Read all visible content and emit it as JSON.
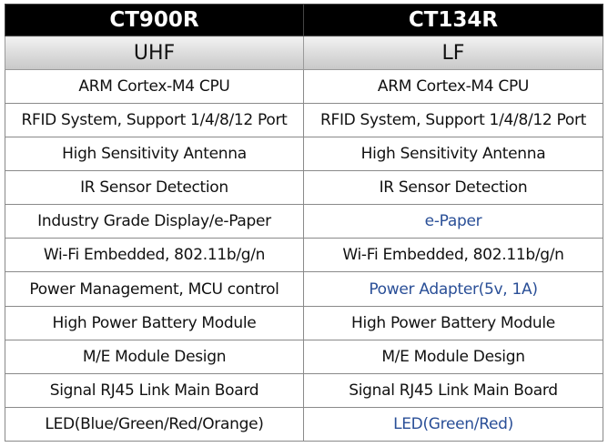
{
  "table": {
    "columns": [
      "CT900R",
      "CT134R"
    ],
    "bands": [
      "UHF",
      "LF"
    ],
    "highlight_color": "#2a4f97",
    "rows": [
      {
        "left": "ARM Cortex-M4 CPU",
        "right": "ARM Cortex-M4 CPU",
        "right_highlight": false
      },
      {
        "left": "RFID System, Support 1/4/8/12 Port",
        "right": "RFID System, Support 1/4/8/12 Port",
        "right_highlight": false
      },
      {
        "left": "High Sensitivity Antenna",
        "right": "High Sensitivity Antenna",
        "right_highlight": false
      },
      {
        "left": "IR Sensor Detection",
        "right": "IR Sensor Detection",
        "right_highlight": false
      },
      {
        "left": "Industry Grade Display/e-Paper",
        "right": "e-Paper",
        "right_highlight": true
      },
      {
        "left": "Wi-Fi Embedded, 802.11b/g/n",
        "right": "Wi-Fi Embedded, 802.11b/g/n",
        "right_highlight": false
      },
      {
        "left": "Power Management, MCU control",
        "right": "Power Adapter(5v, 1A)",
        "right_highlight": true
      },
      {
        "left": "High Power Battery Module",
        "right": "High Power Battery Module",
        "right_highlight": false
      },
      {
        "left": "M/E Module Design",
        "right": "M/E Module Design",
        "right_highlight": false
      },
      {
        "left": "Signal RJ45 Link Main Board",
        "right": "Signal RJ45 Link Main Board",
        "right_highlight": false
      },
      {
        "left": "LED(Blue/Green/Red/Orange)",
        "right": "LED(Green/Red)",
        "right_highlight": true
      }
    ]
  }
}
